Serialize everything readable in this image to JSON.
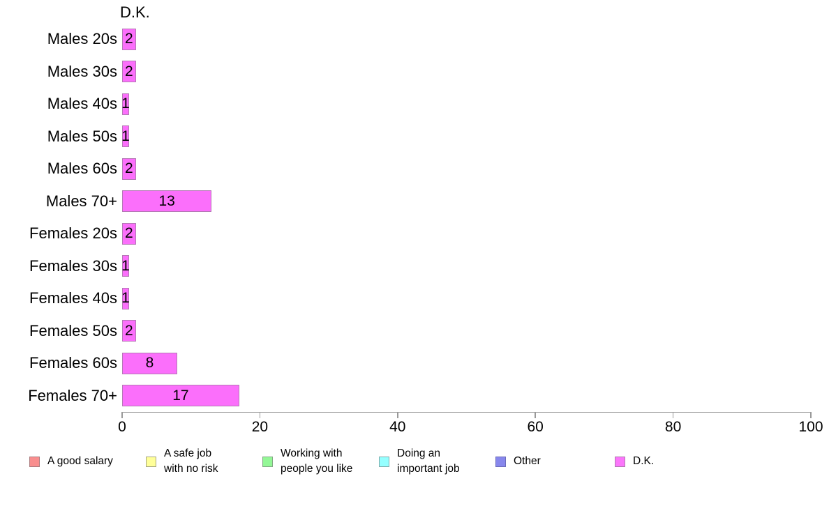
{
  "chart_data": {
    "type": "bar",
    "orientation": "horizontal",
    "title": "D.K.",
    "categories": [
      "Males 20s",
      "Males 30s",
      "Males 40s",
      "Males 50s",
      "Males 60s",
      "Males 70+",
      "Females 20s",
      "Females 30s",
      "Females 40s",
      "Females 50s",
      "Females 60s",
      "Females 70+"
    ],
    "values": [
      2,
      2,
      1,
      1,
      2,
      13,
      2,
      1,
      1,
      2,
      8,
      17
    ],
    "bar_labels_shown": true,
    "xlim": [
      0,
      100
    ],
    "xticks": [
      "0",
      "20",
      "40",
      "60",
      "80",
      "100"
    ],
    "grid": false,
    "bar_color": "#FB6FFB",
    "bar_border_color": "#B478B4",
    "axis_color": "#999999",
    "legend_position": "bottom",
    "legend": [
      {
        "label": "A good salary",
        "color": "#F98E8E",
        "border": "#AB7A7D"
      },
      {
        "label": "A safe job\nwith no risk",
        "color": "#FFFF99",
        "border": "#A5A57F"
      },
      {
        "label": "Working with\npeople you like",
        "color": "#93F796",
        "border": "#83A884"
      },
      {
        "label": "Doing an\nimportant job",
        "color": "#95FFFF",
        "border": "#7FABAB"
      },
      {
        "label": "Other",
        "color": "#8787EC",
        "border": "#6C6CB9"
      },
      {
        "label": "D.K.",
        "color": "#FB76FB",
        "border": "#AE78AE"
      }
    ]
  }
}
